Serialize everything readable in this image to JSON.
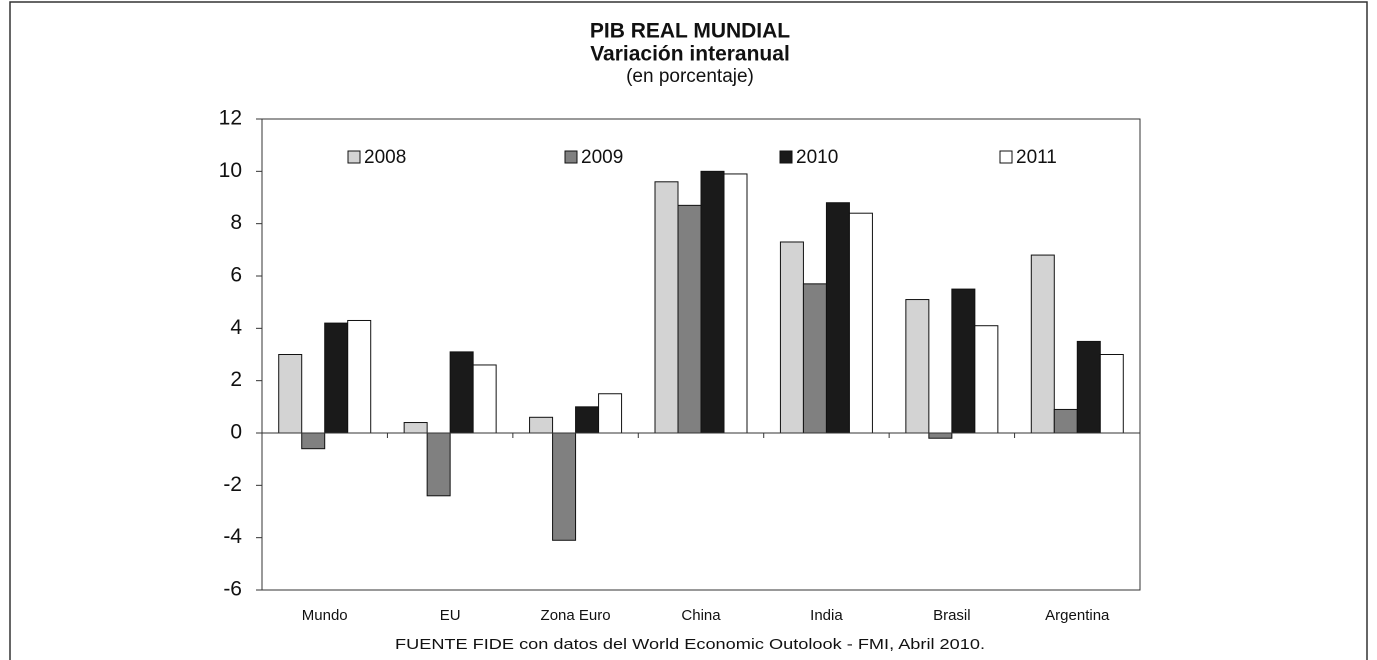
{
  "chart_data": {
    "type": "bar",
    "title": "PIB REAL MUNDIAL",
    "subtitle": "Variación interanual",
    "units": "(en porcentaje)",
    "source": "FUENTE FIDE con datos del World Economic Outolook - FMI, Abril 2010.",
    "categories": [
      "Mundo",
      "EU",
      "Zona Euro",
      "China",
      "India",
      "Brasil",
      "Argentina"
    ],
    "series": [
      {
        "name": "2008",
        "color": "#d3d3d3",
        "values": [
          3.0,
          0.4,
          0.6,
          9.6,
          7.3,
          5.1,
          6.8
        ]
      },
      {
        "name": "2009",
        "color": "#808080",
        "values": [
          -0.6,
          -2.4,
          -4.1,
          8.7,
          5.7,
          -0.2,
          0.9
        ]
      },
      {
        "name": "2010",
        "color": "#1a1a1a",
        "values": [
          4.2,
          3.1,
          1.0,
          10.0,
          8.8,
          5.5,
          3.5
        ]
      },
      {
        "name": "2011",
        "color": "#ffffff",
        "values": [
          4.3,
          2.6,
          1.5,
          9.9,
          8.4,
          4.1,
          3.0
        ]
      }
    ],
    "ylim": [
      -6,
      12
    ],
    "yticks": [
      -6,
      -4,
      -2,
      0,
      2,
      4,
      6,
      8,
      10,
      12
    ],
    "grid": false,
    "legend": "top"
  }
}
